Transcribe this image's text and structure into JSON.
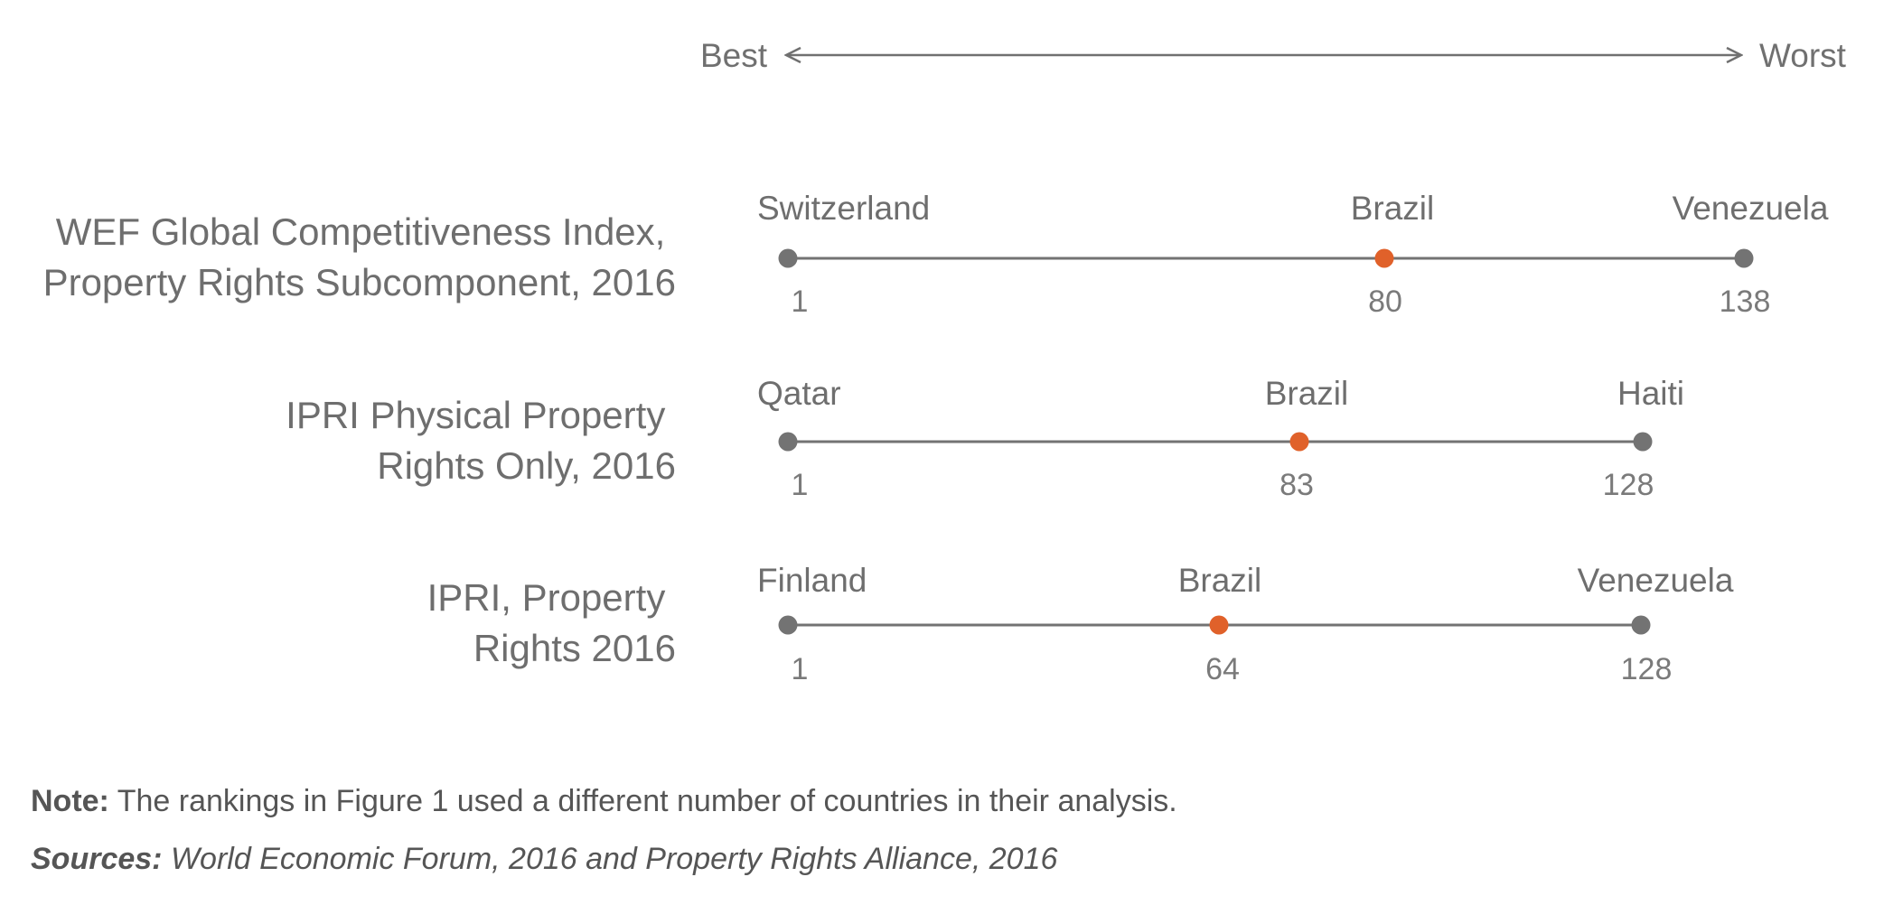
{
  "chart_data": {
    "type": "dot-range",
    "scale": {
      "left_label": "Best",
      "right_label": "Worst"
    },
    "rows": [
      {
        "label_lines": [
          "WEF Global Competitiveness Index,",
          "Property Rights Subcomponent, 2016"
        ],
        "best": {
          "country": "Switzerland",
          "rank": 1
        },
        "brazil": {
          "country": "Brazil",
          "rank": 80
        },
        "worst": {
          "country": "Venezuela",
          "rank": 138
        }
      },
      {
        "label_lines": [
          "IPRI Physical Property",
          "Rights Only, 2016"
        ],
        "best": {
          "country": "Qatar",
          "rank": 1
        },
        "brazil": {
          "country": "Brazil",
          "rank": 83
        },
        "worst": {
          "country": "Haiti",
          "rank": 128
        }
      },
      {
        "label_lines": [
          "IPRI, Property",
          "Rights 2016"
        ],
        "best": {
          "country": "Finland",
          "rank": 1
        },
        "brazil": {
          "country": "Brazil",
          "rank": 64
        },
        "worst": {
          "country": "Venezuela",
          "rank": 128
        }
      }
    ],
    "colors": {
      "endpoint": "#737373",
      "highlight": "#e0612a",
      "line": "#737373"
    }
  },
  "note": {
    "label": "Note:",
    "text": " The rankings in Figure 1 used a different number of countries in their analysis."
  },
  "sources": {
    "label": "Sources:",
    "text": " World Economic Forum, 2016 and Property Rights Alliance, 2016"
  }
}
